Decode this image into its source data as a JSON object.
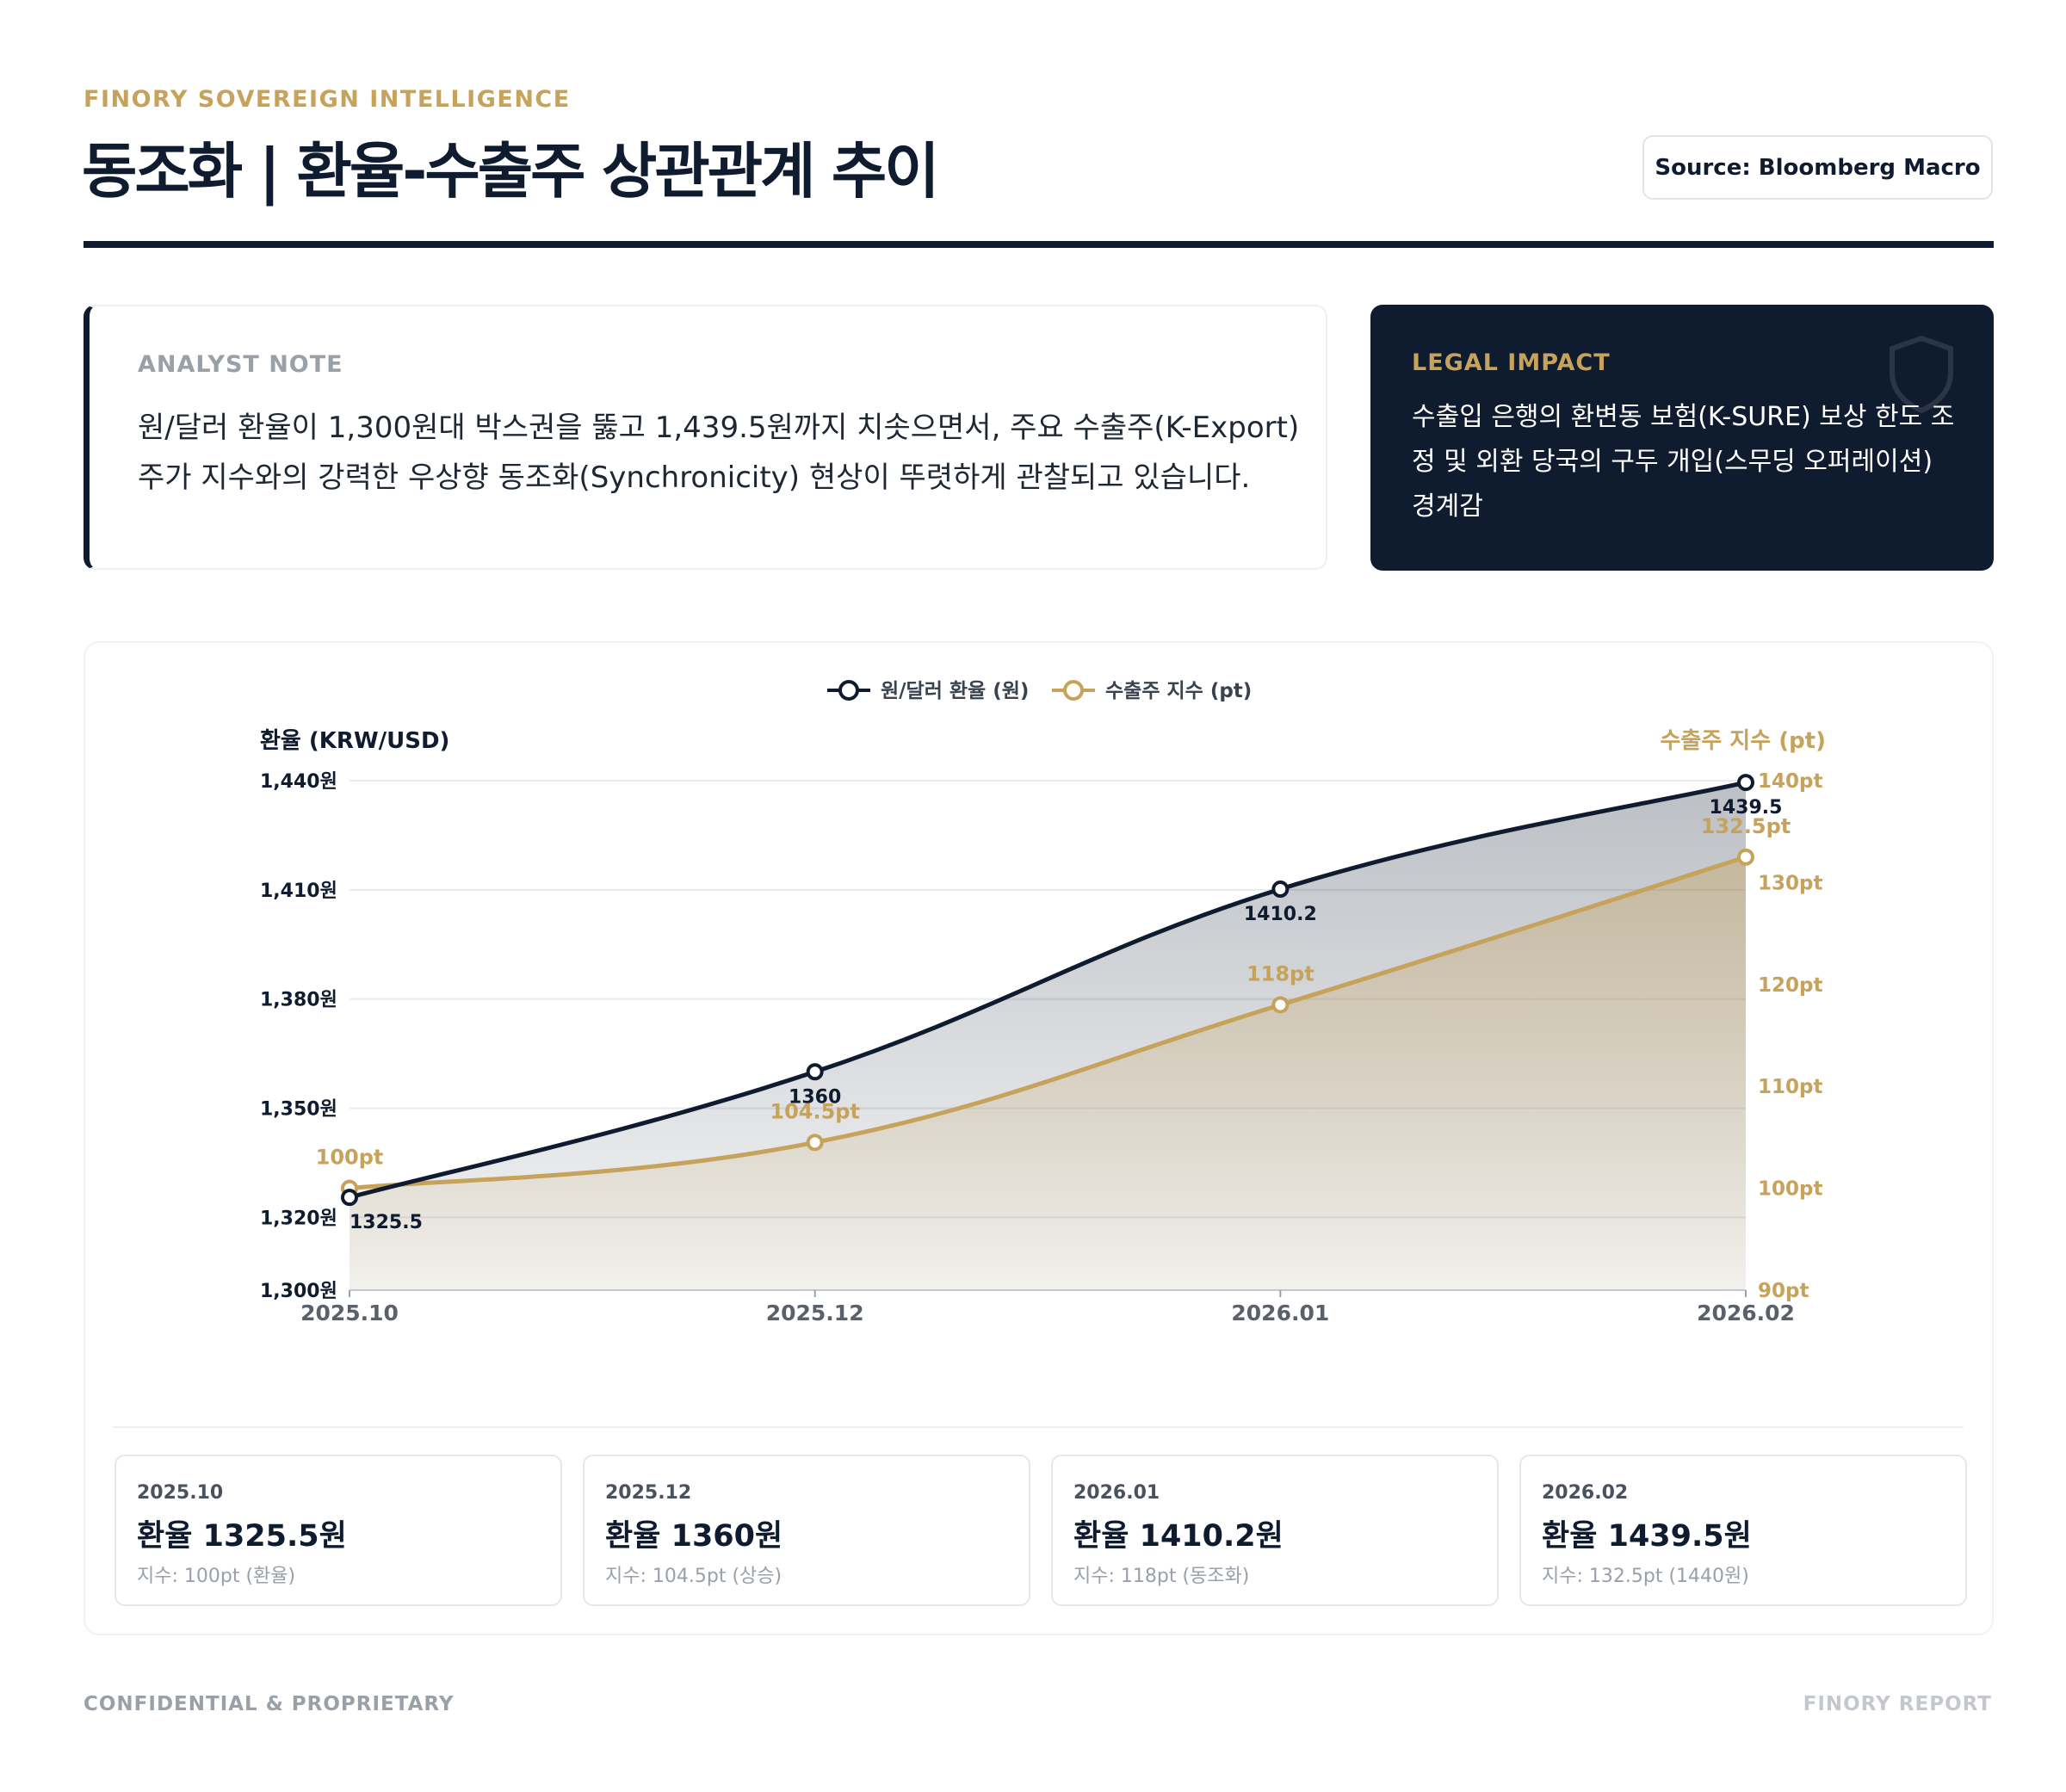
{
  "header": {
    "brand": "FINORY SOVEREIGN INTELLIGENCE",
    "title": "동조화 | 환율-수출주 상관관계 추이",
    "source": "Source: Bloomberg Macro"
  },
  "analyst_note": {
    "label": "ANALYST NOTE",
    "text": "원/달러 환율이 1,300원대 박스권을 뚫고 1,439.5원까지 치솟으면서, 주요 수출주(K-Export) 주가 지수와의 강력한 우상향 동조화(Synchronicity) 현상이 뚜렷하게 관찰되고 있습니다."
  },
  "legal_impact": {
    "label": "LEGAL IMPACT",
    "text": "수출입 은행의 환변동 보험(K-SURE) 보상 한도 조정 및 외환 당국의 구두 개입(스무딩 오퍼레이션) 경계감"
  },
  "chart_data": {
    "type": "line",
    "categories": [
      "2025.10",
      "2025.12",
      "2026.01",
      "2026.02"
    ],
    "series": [
      {
        "name": "원/달러 환율 (원)",
        "axis": "left",
        "values": [
          1325.5,
          1360,
          1410.2,
          1439.5
        ],
        "labels": [
          "1325.5",
          "1360",
          "1410.2",
          "1439.5"
        ],
        "color": "#0f1b2f"
      },
      {
        "name": "수출주 지수 (pt)",
        "axis": "right",
        "values": [
          100,
          104.5,
          118,
          132.5
        ],
        "labels": [
          "100pt",
          "104.5pt",
          "118pt",
          "132.5pt"
        ],
        "color": "#c6a25b"
      }
    ],
    "ylabel_left": "환율 (KRW/USD)",
    "ylabel_right": "수출주 지수 (pt)",
    "ylim_left": [
      1300,
      1440
    ],
    "ylim_right": [
      90,
      140
    ],
    "yticks_left": [
      "1,300원",
      "1,320원",
      "1,350원",
      "1,380원",
      "1,410원",
      "1,440원"
    ],
    "yticks_left_values": [
      1300,
      1320,
      1350,
      1380,
      1410,
      1440
    ],
    "yticks_right": [
      "90pt",
      "100pt",
      "110pt",
      "120pt",
      "130pt",
      "140pt"
    ],
    "yticks_right_values": [
      90,
      100,
      110,
      120,
      130,
      140
    ],
    "grid": true,
    "legend": "top-center"
  },
  "stats": [
    {
      "date": "2025.10",
      "value": "환율 1325.5원",
      "sub": "지수: 100pt (환율)"
    },
    {
      "date": "2025.12",
      "value": "환율 1360원",
      "sub": "지수: 104.5pt (상승)"
    },
    {
      "date": "2026.01",
      "value": "환율 1410.2원",
      "sub": "지수: 118pt (동조화)"
    },
    {
      "date": "2026.02",
      "value": "환율 1439.5원",
      "sub": "지수: 132.5pt (1440원)"
    }
  ],
  "footer": {
    "left": "CONFIDENTIAL & PROPRIETARY",
    "right": "FINORY REPORT"
  },
  "colors": {
    "navy": "#0f1b2f",
    "gold": "#c6a25b"
  }
}
